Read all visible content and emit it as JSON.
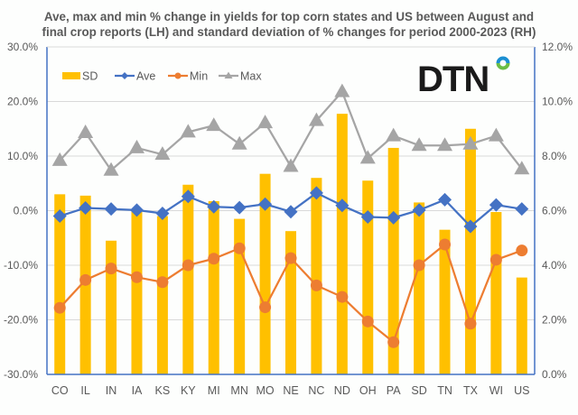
{
  "logo": {
    "text": "DTN",
    "ring_top_color": "#1b8fd2",
    "ring_bottom_color": "#6cbd45"
  },
  "chart_data": {
    "type": "bar+line",
    "title_lines": [
      "Ave, max and min % change in yields for top corn states and US between August and",
      "final crop reports (LH) and standard deviation of % changes for period 2000-2023 (RH)"
    ],
    "categories": [
      "CO",
      "IL",
      "IN",
      "IA",
      "KS",
      "KY",
      "MI",
      "MN",
      "MO",
      "NE",
      "NC",
      "ND",
      "OH",
      "PA",
      "SD",
      "TN",
      "TX",
      "WI",
      "US"
    ],
    "y_left": {
      "min": -30,
      "max": 30,
      "step": 10,
      "ticks": [
        "-30.0%",
        "-20.0%",
        "-10.0%",
        "0.0%",
        "10.0%",
        "20.0%",
        "30.0%"
      ]
    },
    "y_right": {
      "min": 0,
      "max": 12,
      "step": 2,
      "ticks": [
        "0.0%",
        "2.0%",
        "4.0%",
        "6.0%",
        "8.0%",
        "10.0%",
        "12.0%"
      ]
    },
    "grid": true,
    "legend_position": "top-left",
    "series": [
      {
        "name": "SD",
        "type": "bar",
        "axis": "right",
        "color": "#ffc000",
        "values": [
          6.6,
          6.55,
          4.9,
          6.0,
          5.8,
          6.95,
          6.35,
          5.7,
          7.35,
          5.25,
          7.2,
          9.55,
          7.1,
          8.3,
          6.3,
          5.3,
          9.0,
          5.95,
          3.55
        ]
      },
      {
        "name": "Ave",
        "type": "line",
        "axis": "left",
        "color": "#4472c4",
        "marker": "diamond",
        "values": [
          -1.0,
          0.5,
          0.3,
          0.1,
          -0.5,
          2.6,
          0.7,
          0.55,
          1.2,
          -0.2,
          3.25,
          0.95,
          -1.15,
          -1.3,
          0.1,
          2.0,
          -2.9,
          1.05,
          0.3
        ]
      },
      {
        "name": "Min",
        "type": "line",
        "axis": "left",
        "color": "#ed7d31",
        "marker": "circle",
        "values": [
          -17.8,
          -12.7,
          -10.6,
          -12.2,
          -13.1,
          -10.0,
          -8.8,
          -6.9,
          -17.7,
          -8.7,
          -13.7,
          -15.8,
          -20.3,
          -24.1,
          -10.0,
          -6.2,
          -20.7,
          -9.0,
          -7.3
        ]
      },
      {
        "name": "Max",
        "type": "line",
        "axis": "left",
        "color": "#a5a5a5",
        "marker": "triangle",
        "values": [
          9.2,
          14.3,
          7.4,
          11.5,
          10.3,
          14.4,
          15.6,
          12.2,
          16.1,
          8.1,
          16.5,
          21.8,
          9.6,
          13.7,
          11.95,
          11.95,
          12.2,
          13.7,
          7.65
        ]
      }
    ]
  }
}
